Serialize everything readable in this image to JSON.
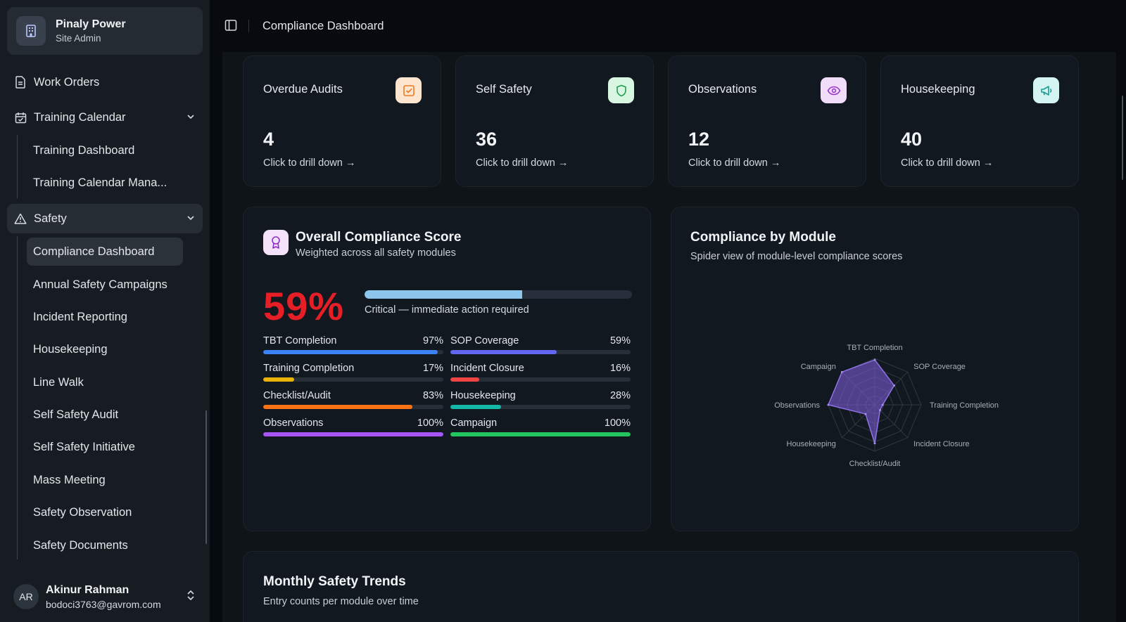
{
  "org": {
    "name": "Pinaly Power",
    "role": "Site Admin"
  },
  "nav": {
    "work_orders": "Work Orders",
    "training_calendar": "Training Calendar",
    "training_sub": [
      "Training Dashboard",
      "Training Calendar Mana..."
    ],
    "safety": "Safety",
    "safety_sub": [
      "Compliance Dashboard",
      "Annual Safety Campaigns",
      "Incident Reporting",
      "Housekeeping",
      "Line Walk",
      "Self Safety Audit",
      "Self Safety Initiative",
      "Mass Meeting",
      "Safety Observation",
      "Safety Documents"
    ]
  },
  "user": {
    "initials": "AR",
    "name": "Akinur Rahman",
    "email": "bodoci3763@gavrom.com"
  },
  "header": {
    "title": "Compliance Dashboard"
  },
  "stats": [
    {
      "label": "Overdue Audits",
      "value": "4",
      "link": "Click to drill down →",
      "icon": "checkbox-icon",
      "bg": "#fde5cf",
      "fg": "#ef7a22"
    },
    {
      "label": "Self Safety",
      "value": "36",
      "link": "Click to drill down →",
      "icon": "shield-icon",
      "bg": "#d8f6e2",
      "fg": "#1e9e4f"
    },
    {
      "label": "Observations",
      "value": "12",
      "link": "Click to drill down →",
      "icon": "eye-icon",
      "bg": "#f1dcfa",
      "fg": "#9b34d1"
    },
    {
      "label": "Housekeeping",
      "value": "40",
      "link": "Click to drill down →",
      "icon": "megaphone-icon",
      "bg": "#d4f4f1",
      "fg": "#199e93"
    }
  ],
  "overall": {
    "title": "Overall Compliance Score",
    "subtitle": "Weighted across all safety modules",
    "score_text": "59%",
    "score": 59,
    "status": "Critical — immediate action required",
    "metrics": [
      {
        "label": "TBT Completion",
        "value_text": "97%",
        "value": 97,
        "color": "#3b82f6"
      },
      {
        "label": "SOP Coverage",
        "value_text": "59%",
        "value": 59,
        "color": "#6366f1"
      },
      {
        "label": "Training Completion",
        "value_text": "17%",
        "value": 17,
        "color": "#eab308"
      },
      {
        "label": "Incident Closure",
        "value_text": "16%",
        "value": 16,
        "color": "#ef4444"
      },
      {
        "label": "Checklist/Audit",
        "value_text": "83%",
        "value": 83,
        "color": "#f97316"
      },
      {
        "label": "Housekeeping",
        "value_text": "28%",
        "value": 28,
        "color": "#14b8a6"
      },
      {
        "label": "Observations",
        "value_text": "100%",
        "value": 100,
        "color": "#a855f7"
      },
      {
        "label": "Campaign",
        "value_text": "100%",
        "value": 100,
        "color": "#22c55e"
      }
    ]
  },
  "module": {
    "title": "Compliance by Module",
    "subtitle": "Spider view of module-level compliance scores"
  },
  "chart_data": {
    "type": "radar",
    "categories": [
      "TBT Completion",
      "SOP Coverage",
      "Training Completion",
      "Incident Closure",
      "Checklist/Audit",
      "Housekeeping",
      "Observations",
      "Campaign"
    ],
    "values": [
      97,
      59,
      17,
      16,
      83,
      28,
      100,
      100
    ],
    "range": [
      0,
      100
    ],
    "color": "#7c5cd6"
  },
  "trends": {
    "title": "Monthly Safety Trends",
    "subtitle": "Entry counts per module over time"
  }
}
